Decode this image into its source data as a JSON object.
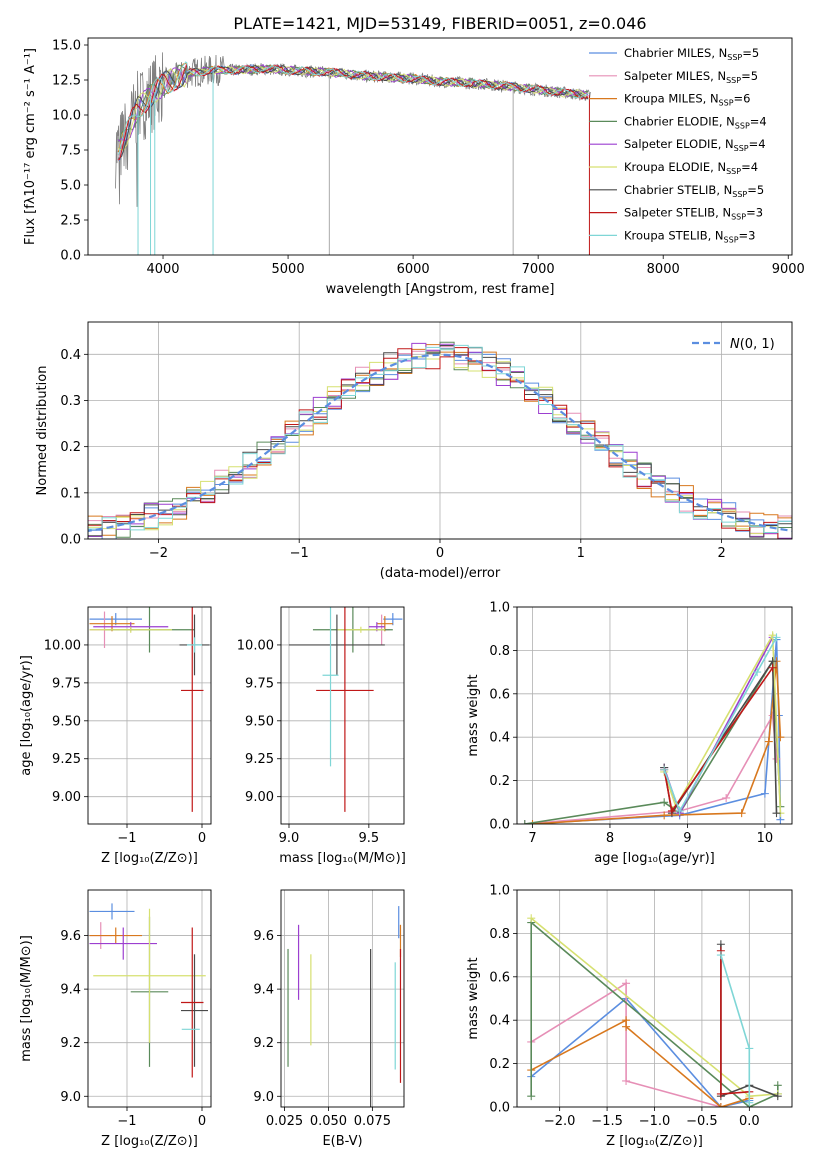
{
  "figure_title": "PLATE=1421, MJD=53149, FIBERID=0051, z=0.046",
  "colors": {
    "Chabrier MILES": "#5b8ee0",
    "Salpeter MILES": "#e68fb6",
    "Kroupa MILES": "#d8781e",
    "Chabrier ELODIE": "#5a8a5a",
    "Salpeter ELODIE": "#9c3fd0",
    "Kroupa ELODIE": "#d6e070",
    "Chabrier STELIB": "#4a4a4a",
    "Salpeter STELIB": "#c01818",
    "Kroupa STELIB": "#7fd6d6",
    "Gaussian": "#5b8ee0"
  },
  "chart_data": [
    {
      "id": "spectrum",
      "type": "line",
      "title": "PLATE=1421, MJD=53149, FIBERID=0051, z=0.046",
      "xlabel": "wavelength [Angstrom, rest frame]",
      "ylabel": "Flux [fλ10⁻¹⁷ erg cm⁻² s⁻¹ A⁻¹]",
      "xlim": [
        3400,
        9030
      ],
      "ylim": [
        0,
        15.5
      ],
      "xticks": [
        4000,
        5000,
        6000,
        7000,
        8000,
        9000
      ],
      "yticks": [
        0.0,
        2.5,
        5.0,
        7.5,
        10.0,
        12.5,
        15.0
      ],
      "grid": false,
      "legend": "top-right",
      "legend_entries": [
        "Chabrier MILES, N_SSP=5",
        "Salpeter MILES, N_SSP=5",
        "Kroupa MILES, N_SSP=6",
        "Chabrier ELODIE, N_SSP=4",
        "Salpeter ELODIE, N_SSP=4",
        "Kroupa ELODIE, N_SSP=4",
        "Chabrier STELIB, N_SSP=5",
        "Salpeter STELIB, N_SSP=3",
        "Kroupa STELIB, N_SSP=3"
      ],
      "legend_names": [
        "Chabrier MILES, N",
        "Salpeter MILES, N",
        "Kroupa MILES, N",
        "Chabrier ELODIE, N",
        "Salpeter ELODIE, N",
        "Kroupa ELODIE, N",
        "Chabrier STELIB, N",
        "Salpeter STELIB, N",
        "Kroupa STELIB, N"
      ],
      "legend_values": [
        "=5",
        "=5",
        "=6",
        "=4",
        "=4",
        "=4",
        "=5",
        "=3",
        "=3"
      ],
      "legend_subscript": "SSP",
      "continuum": {
        "x": [
          3650,
          3800,
          4000,
          4200,
          4400,
          4600,
          4800,
          5000,
          5200,
          5400,
          5600,
          5800,
          6000,
          6200,
          6400,
          6600,
          6800,
          7000,
          7200,
          7400
        ],
        "y": [
          7.5,
          10.5,
          12.2,
          13.0,
          13.2,
          13.2,
          13.3,
          13.2,
          13.1,
          13.0,
          12.8,
          12.7,
          12.6,
          12.4,
          12.3,
          12.2,
          12.0,
          11.8,
          11.6,
          11.4
        ]
      },
      "absorption_lines": [
        3934,
        4400,
        5330,
        6800,
        3800,
        3900
      ]
    },
    {
      "id": "residuals",
      "type": "line",
      "xlabel": "(data-model)/error",
      "ylabel": "Normed distribution",
      "xlim": [
        -2.5,
        2.5
      ],
      "ylim": [
        0,
        0.47
      ],
      "xticks": [
        -2,
        -1,
        0,
        1,
        2
      ],
      "yticks": [
        0.0,
        0.1,
        0.2,
        0.3,
        0.4
      ],
      "grid": true,
      "legend": "top-right",
      "legend_entry": "N(0, 1)",
      "legend_label_main": "𝒩",
      "legend_label_rest": "(0, 1)",
      "gaussian": {
        "mu": 0,
        "sigma": 1
      }
    },
    {
      "id": "age_vs_Z",
      "type": "scatter",
      "xlabel": "Z [log₁₀(Z/Z⊙)]",
      "ylabel": "age  [log₁₀(age/yr)]",
      "xlim": [
        -1.52,
        0.12
      ],
      "ylim": [
        8.82,
        10.25
      ],
      "xticks": [
        -1,
        0
      ],
      "yticks": [
        9.0,
        9.25,
        9.5,
        9.75,
        10.0
      ],
      "grid": true,
      "errorbars": [
        {
          "model": "Chabrier MILES",
          "x": -1.15,
          "y": 10.17,
          "xerr": 0.35,
          "yerr": 0.04
        },
        {
          "model": "Salpeter MILES",
          "x": -1.3,
          "y": 10.1,
          "xerr": 0.2,
          "yerr": 0.12
        },
        {
          "model": "Kroupa MILES",
          "x": -1.2,
          "y": 10.14,
          "xerr": 0.3,
          "yerr": 0.05
        },
        {
          "model": "Chabrier ELODIE",
          "x": -0.7,
          "y": 10.1,
          "xerr": 0.6,
          "yerr": 0.15
        },
        {
          "model": "Salpeter ELODIE",
          "x": -0.95,
          "y": 10.12,
          "xerr": 0.5,
          "yerr": 0.03
        },
        {
          "model": "Kroupa ELODIE",
          "x": -0.95,
          "y": 10.1,
          "xerr": 0.55,
          "yerr": 0.02
        },
        {
          "model": "Chabrier STELIB",
          "x": -0.1,
          "y": 10.0,
          "xerr": 0.2,
          "yerr": 0.2
        },
        {
          "model": "Salpeter STELIB",
          "x": -0.13,
          "y": 9.7,
          "xerr": 0.15,
          "yerr": 0.8
        },
        {
          "model": "Kroupa STELIB",
          "x": -0.1,
          "y": 10.0,
          "xerr": 0.1,
          "yerr": 0.05
        }
      ]
    },
    {
      "id": "age_vs_mass",
      "type": "scatter",
      "xlabel": "mass [log₁₀(M/M⊙)]",
      "ylabel": "",
      "xlim": [
        8.95,
        9.72
      ],
      "ylim": [
        8.82,
        10.25
      ],
      "xticks": [
        9.0,
        9.5
      ],
      "yticks": [
        9.0,
        9.25,
        9.5,
        9.75,
        10.0
      ],
      "grid": true,
      "errorbars": [
        {
          "model": "Chabrier MILES",
          "x": 9.65,
          "y": 10.17,
          "xerr": 0.06,
          "yerr": 0.04
        },
        {
          "model": "Salpeter MILES",
          "x": 9.58,
          "y": 10.1,
          "xerr": 0.05,
          "yerr": 0.1
        },
        {
          "model": "Kroupa MILES",
          "x": 9.6,
          "y": 10.14,
          "xerr": 0.05,
          "yerr": 0.05
        },
        {
          "model": "Chabrier ELODIE",
          "x": 9.4,
          "y": 10.1,
          "xerr": 0.25,
          "yerr": 0.15
        },
        {
          "model": "Salpeter ELODIE",
          "x": 9.55,
          "y": 10.12,
          "xerr": 0.05,
          "yerr": 0.03
        },
        {
          "model": "Kroupa ELODIE",
          "x": 9.45,
          "y": 10.1,
          "xerr": 0.15,
          "yerr": 0.02
        },
        {
          "model": "Chabrier STELIB",
          "x": 9.3,
          "y": 10.0,
          "xerr": 0.3,
          "yerr": 0.2
        },
        {
          "model": "Salpeter STELIB",
          "x": 9.35,
          "y": 9.7,
          "xerr": 0.18,
          "yerr": 0.8
        },
        {
          "model": "Kroupa STELIB",
          "x": 9.26,
          "y": 9.8,
          "xerr": 0.05,
          "yerr": 0.6
        }
      ]
    },
    {
      "id": "massweight_vs_age",
      "type": "line",
      "xlabel": "age  [log₁₀(age/yr)]",
      "ylabel": "mass weight",
      "xlim": [
        6.8,
        10.35
      ],
      "ylim": [
        0,
        1.0
      ],
      "xticks": [
        7,
        8,
        9,
        10
      ],
      "yticks": [
        0.0,
        0.2,
        0.4,
        0.6,
        0.8,
        1.0
      ],
      "grid": true,
      "series": [
        {
          "model": "Chabrier MILES",
          "x": [
            6.9,
            8.9,
            10.0,
            10.15,
            10.18,
            10.2
          ],
          "y": [
            0.0,
            0.04,
            0.14,
            0.85,
            0.5,
            0.02
          ]
        },
        {
          "model": "Salpeter MILES",
          "x": [
            6.9,
            8.9,
            9.5,
            10.1,
            10.15
          ],
          "y": [
            0.0,
            0.06,
            0.12,
            0.5,
            0.3
          ]
        },
        {
          "model": "Kroupa MILES",
          "x": [
            7.0,
            8.7,
            9.7,
            10.05,
            10.15,
            10.2
          ],
          "y": [
            0.0,
            0.04,
            0.05,
            0.38,
            0.75,
            0.4
          ]
        },
        {
          "model": "Chabrier ELODIE",
          "x": [
            6.9,
            8.7,
            8.9,
            10.1,
            10.2
          ],
          "y": [
            0.0,
            0.1,
            0.05,
            0.75,
            0.08
          ]
        },
        {
          "model": "Salpeter ELODIE",
          "x": [
            8.7,
            8.9,
            10.1
          ],
          "y": [
            0.26,
            0.05,
            0.86
          ]
        },
        {
          "model": "Kroupa ELODIE",
          "x": [
            8.7,
            8.85,
            10.1,
            10.2
          ],
          "y": [
            0.24,
            0.08,
            0.87,
            0.05
          ]
        },
        {
          "model": "Chabrier STELIB",
          "x": [
            8.7,
            8.8,
            10.1,
            10.15
          ],
          "y": [
            0.26,
            0.05,
            0.75,
            0.05
          ]
        },
        {
          "model": "Salpeter STELIB",
          "x": [
            8.7,
            8.8,
            10.1
          ],
          "y": [
            0.25,
            0.06,
            0.72
          ]
        },
        {
          "model": "Kroupa STELIB",
          "x": [
            8.7,
            8.9,
            9.9,
            10.15
          ],
          "y": [
            0.25,
            0.06,
            0.7,
            0.86
          ]
        }
      ]
    },
    {
      "id": "mass_vs_Z",
      "type": "scatter",
      "xlabel": "Z [log₁₀(Z/Z⊙)]",
      "ylabel": "mass [log₁₀(M/M⊙)]",
      "xlim": [
        -1.52,
        0.12
      ],
      "ylim": [
        8.96,
        9.77
      ],
      "xticks": [
        -1,
        0
      ],
      "yticks": [
        9.0,
        9.2,
        9.4,
        9.6
      ],
      "grid": true,
      "errorbars": [
        {
          "model": "Chabrier MILES",
          "x": -1.2,
          "y": 9.69,
          "xerr": 0.3,
          "yerr": 0.03
        },
        {
          "model": "Salpeter MILES",
          "x": -1.35,
          "y": 9.6,
          "xerr": 0.15,
          "yerr": 0.05
        },
        {
          "model": "Kroupa MILES",
          "x": -1.15,
          "y": 9.6,
          "xerr": 0.35,
          "yerr": 0.03
        },
        {
          "model": "Chabrier ELODIE",
          "x": -0.7,
          "y": 9.39,
          "xerr": 0.25,
          "yerr": 0.28
        },
        {
          "model": "Salpeter ELODIE",
          "x": -1.05,
          "y": 9.57,
          "xerr": 0.45,
          "yerr": 0.06
        },
        {
          "model": "Kroupa ELODIE",
          "x": -0.7,
          "y": 9.45,
          "xerr": 0.75,
          "yerr": 0.25
        },
        {
          "model": "Chabrier STELIB",
          "x": -0.1,
          "y": 9.32,
          "xerr": 0.18,
          "yerr": 0.21
        },
        {
          "model": "Salpeter STELIB",
          "x": -0.13,
          "y": 9.35,
          "xerr": 0.15,
          "yerr": 0.28
        },
        {
          "model": "Kroupa STELIB",
          "x": -0.15,
          "y": 9.25,
          "xerr": 0.12,
          "yerr": 0.0
        }
      ]
    },
    {
      "id": "mass_vs_EBV",
      "type": "scatter",
      "xlabel": "E(B-V)",
      "ylabel": "",
      "xlim": [
        0.023,
        0.093
      ],
      "ylim": [
        8.96,
        9.77
      ],
      "xticks": [
        0.025,
        0.05,
        0.075
      ],
      "yticks": [
        9.0,
        9.2,
        9.4,
        9.6
      ],
      "grid": true,
      "errorbars": [
        {
          "model": "Chabrier ELODIE",
          "x": 0.027,
          "y": 9.33,
          "xerr": 0.0,
          "yerr": 0.22
        },
        {
          "model": "Salpeter ELODIE",
          "x": 0.033,
          "y": 9.5,
          "xerr": 0.0,
          "yerr": 0.14
        },
        {
          "model": "Kroupa ELODIE",
          "x": 0.04,
          "y": 9.36,
          "xerr": 0.0,
          "yerr": 0.17
        },
        {
          "model": "Chabrier STELIB",
          "x": 0.074,
          "y": 9.25,
          "xerr": 0.0,
          "yerr": 0.3
        },
        {
          "model": "Chabrier MILES",
          "x": 0.09,
          "y": 9.65,
          "xerr": 0.0,
          "yerr": 0.06
        },
        {
          "model": "Kroupa MILES",
          "x": 0.091,
          "y": 9.58,
          "xerr": 0.0,
          "yerr": 0.06
        },
        {
          "model": "Salpeter STELIB",
          "x": 0.091,
          "y": 9.3,
          "xerr": 0.0,
          "yerr": 0.25
        },
        {
          "model": "Kroupa STELIB",
          "x": 0.088,
          "y": 9.3,
          "xerr": 0.0,
          "yerr": 0.2
        }
      ]
    },
    {
      "id": "massweight_vs_Z",
      "type": "line",
      "xlabel": "Z [log₁₀(Z/Z⊙)]",
      "ylabel": "mass weight",
      "xlim": [
        -2.45,
        0.45
      ],
      "ylim": [
        0,
        1.0
      ],
      "xticks": [
        -2.0,
        -1.5,
        -1.0,
        -0.5,
        0.0
      ],
      "yticks": [
        0.0,
        0.2,
        0.4,
        0.6,
        0.8,
        1.0
      ],
      "grid": true,
      "series": [
        {
          "model": "Chabrier MILES",
          "x": [
            -2.3,
            -1.3,
            -0.3,
            0.0
          ],
          "y": [
            0.14,
            0.5,
            0.0,
            0.03
          ]
        },
        {
          "model": "Salpeter MILES",
          "x": [
            -2.3,
            -1.3,
            -1.3,
            -0.3
          ],
          "y": [
            0.3,
            0.57,
            0.12,
            0.0
          ]
        },
        {
          "model": "Kroupa MILES",
          "x": [
            -2.3,
            -1.3,
            -1.3,
            -0.3,
            0.0
          ],
          "y": [
            0.17,
            0.4,
            0.37,
            0.0,
            0.04
          ]
        },
        {
          "model": "Chabrier ELODIE",
          "x": [
            -2.3,
            -2.3,
            0.0,
            0.3,
            0.3
          ],
          "y": [
            0.05,
            0.85,
            0.0,
            0.06,
            0.1
          ]
        },
        {
          "model": "Kroupa ELODIE",
          "x": [
            -2.3,
            0.0,
            0.3
          ],
          "y": [
            0.87,
            0.05,
            0.06
          ]
        },
        {
          "model": "Chabrier STELIB",
          "x": [
            -0.3,
            -0.3,
            0.0,
            0.3
          ],
          "y": [
            0.75,
            0.05,
            0.1,
            0.05
          ]
        },
        {
          "model": "Salpeter STELIB",
          "x": [
            -0.3,
            -0.3,
            0.0
          ],
          "y": [
            0.72,
            0.06,
            0.07
          ]
        },
        {
          "model": "Kroupa STELIB",
          "x": [
            -0.3,
            0.0,
            0.0
          ],
          "y": [
            0.7,
            0.27,
            0.02
          ]
        }
      ]
    }
  ]
}
